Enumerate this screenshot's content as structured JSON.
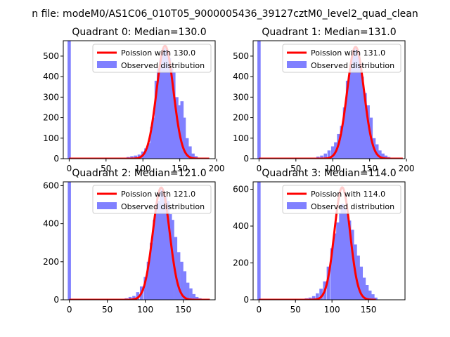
{
  "suptitle": "n file: modeM0/AS1C06_010T05_9000005436_39127cztM0_level2_quad_clean",
  "colors": {
    "bars": "#8080ff",
    "poisson": "#ff0000",
    "axes": "#000000",
    "legend_edge": "#cccccc"
  },
  "chart_data": [
    {
      "type": "bar",
      "title": "Quadrant 0: Median=130.0",
      "xlim": [
        -8,
        198
      ],
      "ylim": [
        0,
        575
      ],
      "xticks": [
        0,
        50,
        100,
        150,
        200
      ],
      "yticks": [
        0,
        100,
        200,
        300,
        400,
        500
      ],
      "bin_width": 4.4,
      "legend": {
        "placement": "upper right",
        "entries": [
          "Poission with 130.0",
          "Observed distribution"
        ]
      },
      "spike": {
        "x": 0,
        "value": 575
      },
      "observed": [
        [
          70,
          3
        ],
        [
          75,
          5
        ],
        [
          80,
          8
        ],
        [
          85,
          12
        ],
        [
          90,
          15
        ],
        [
          95,
          20
        ],
        [
          100,
          35
        ],
        [
          104,
          50
        ],
        [
          108,
          75
        ],
        [
          112,
          155
        ],
        [
          115,
          200
        ],
        [
          118,
          380
        ],
        [
          121,
          440
        ],
        [
          124,
          480
        ],
        [
          127,
          520
        ],
        [
          130,
          540
        ],
        [
          133,
          530
        ],
        [
          136,
          490
        ],
        [
          139,
          440
        ],
        [
          142,
          420
        ],
        [
          146,
          300
        ],
        [
          150,
          260
        ],
        [
          153,
          280
        ],
        [
          156,
          200
        ],
        [
          160,
          100
        ],
        [
          164,
          60
        ],
        [
          168,
          25
        ],
        [
          172,
          12
        ],
        [
          176,
          5
        ]
      ],
      "poisson": {
        "label": "Poission with 130.0",
        "mean": 130.0,
        "peak": 550,
        "x_range": [
          0,
          190
        ]
      }
    },
    {
      "type": "bar",
      "title": "Quadrant 1: Median=131.0",
      "xlim": [
        -8,
        198
      ],
      "ylim": [
        0,
        575
      ],
      "xticks": [
        0,
        50,
        100,
        150,
        200
      ],
      "yticks": [
        0,
        100,
        200,
        300,
        400,
        500
      ],
      "bin_width": 4.4,
      "legend": {
        "placement": "upper right",
        "entries": [
          "Poission with 131.0",
          "Observed distribution"
        ]
      },
      "spike": {
        "x": 0,
        "value": 575
      },
      "observed": [
        [
          80,
          10
        ],
        [
          85,
          15
        ],
        [
          90,
          25
        ],
        [
          95,
          40
        ],
        [
          100,
          60
        ],
        [
          104,
          80
        ],
        [
          108,
          120
        ],
        [
          112,
          160
        ],
        [
          116,
          250
        ],
        [
          120,
          380
        ],
        [
          124,
          440
        ],
        [
          128,
          500
        ],
        [
          131,
          540
        ],
        [
          134,
          500
        ],
        [
          137,
          460
        ],
        [
          140,
          400
        ],
        [
          144,
          320
        ],
        [
          148,
          260
        ],
        [
          152,
          200
        ],
        [
          156,
          100
        ],
        [
          160,
          70
        ],
        [
          164,
          40
        ],
        [
          168,
          25
        ],
        [
          172,
          15
        ],
        [
          176,
          8
        ]
      ],
      "poisson": {
        "label": "Poission with 131.0",
        "mean": 131.0,
        "peak": 545,
        "x_range": [
          0,
          195
        ]
      }
    },
    {
      "type": "bar",
      "title": "Quadrant 2: Median=121.0",
      "xlim": [
        -8,
        192
      ],
      "ylim": [
        0,
        620
      ],
      "xticks": [
        0,
        50,
        100,
        150
      ],
      "yticks": [
        0,
        200,
        400,
        600
      ],
      "bin_width": 4.2,
      "legend": {
        "placement": "upper right",
        "entries": [
          "Poission with 121.0",
          "Observed distribution"
        ]
      },
      "spike": {
        "x": 0,
        "value": 620
      },
      "observed": [
        [
          65,
          3
        ],
        [
          70,
          5
        ],
        [
          75,
          8
        ],
        [
          80,
          15
        ],
        [
          85,
          20
        ],
        [
          90,
          40
        ],
        [
          95,
          70
        ],
        [
          100,
          120
        ],
        [
          104,
          200
        ],
        [
          108,
          300
        ],
        [
          112,
          420
        ],
        [
          115,
          500
        ],
        [
          118,
          520
        ],
        [
          121,
          580
        ],
        [
          124,
          560
        ],
        [
          127,
          540
        ],
        [
          130,
          520
        ],
        [
          133,
          450
        ],
        [
          136,
          420
        ],
        [
          140,
          330
        ],
        [
          144,
          250
        ],
        [
          148,
          200
        ],
        [
          152,
          150
        ],
        [
          156,
          90
        ],
        [
          160,
          60
        ],
        [
          164,
          30
        ],
        [
          168,
          15
        ],
        [
          172,
          8
        ]
      ],
      "poisson": {
        "label": "Poission with 121.0",
        "mean": 121.0,
        "peak": 590,
        "x_range": [
          0,
          185
        ]
      }
    },
    {
      "type": "bar",
      "title": "Quadrant 3: Median=114.0",
      "xlim": [
        -8,
        200
      ],
      "ylim": [
        0,
        640
      ],
      "xticks": [
        0,
        50,
        100,
        150
      ],
      "yticks": [
        0,
        200,
        400,
        600
      ],
      "bin_width": 4.5,
      "legend": {
        "placement": "upper right",
        "entries": [
          "Poission with 114.0",
          "Observed distribution"
        ]
      },
      "spike": {
        "x": 0,
        "value": 640
      },
      "observed": [
        [
          60,
          5
        ],
        [
          65,
          8
        ],
        [
          70,
          12
        ],
        [
          75,
          20
        ],
        [
          80,
          35
        ],
        [
          85,
          60
        ],
        [
          90,
          100
        ],
        [
          95,
          180
        ],
        [
          100,
          280
        ],
        [
          104,
          360
        ],
        [
          108,
          420
        ],
        [
          112,
          470
        ],
        [
          114,
          520
        ],
        [
          117,
          500
        ],
        [
          120,
          470
        ],
        [
          124,
          430
        ],
        [
          128,
          380
        ],
        [
          132,
          300
        ],
        [
          136,
          240
        ],
        [
          140,
          180
        ],
        [
          144,
          120
        ],
        [
          148,
          80
        ],
        [
          152,
          50
        ],
        [
          156,
          30
        ],
        [
          160,
          12
        ]
      ],
      "poisson": {
        "label": "Poission with 114.0",
        "mean": 114.0,
        "peak": 610,
        "x_range": [
          0,
          160
        ]
      }
    }
  ]
}
